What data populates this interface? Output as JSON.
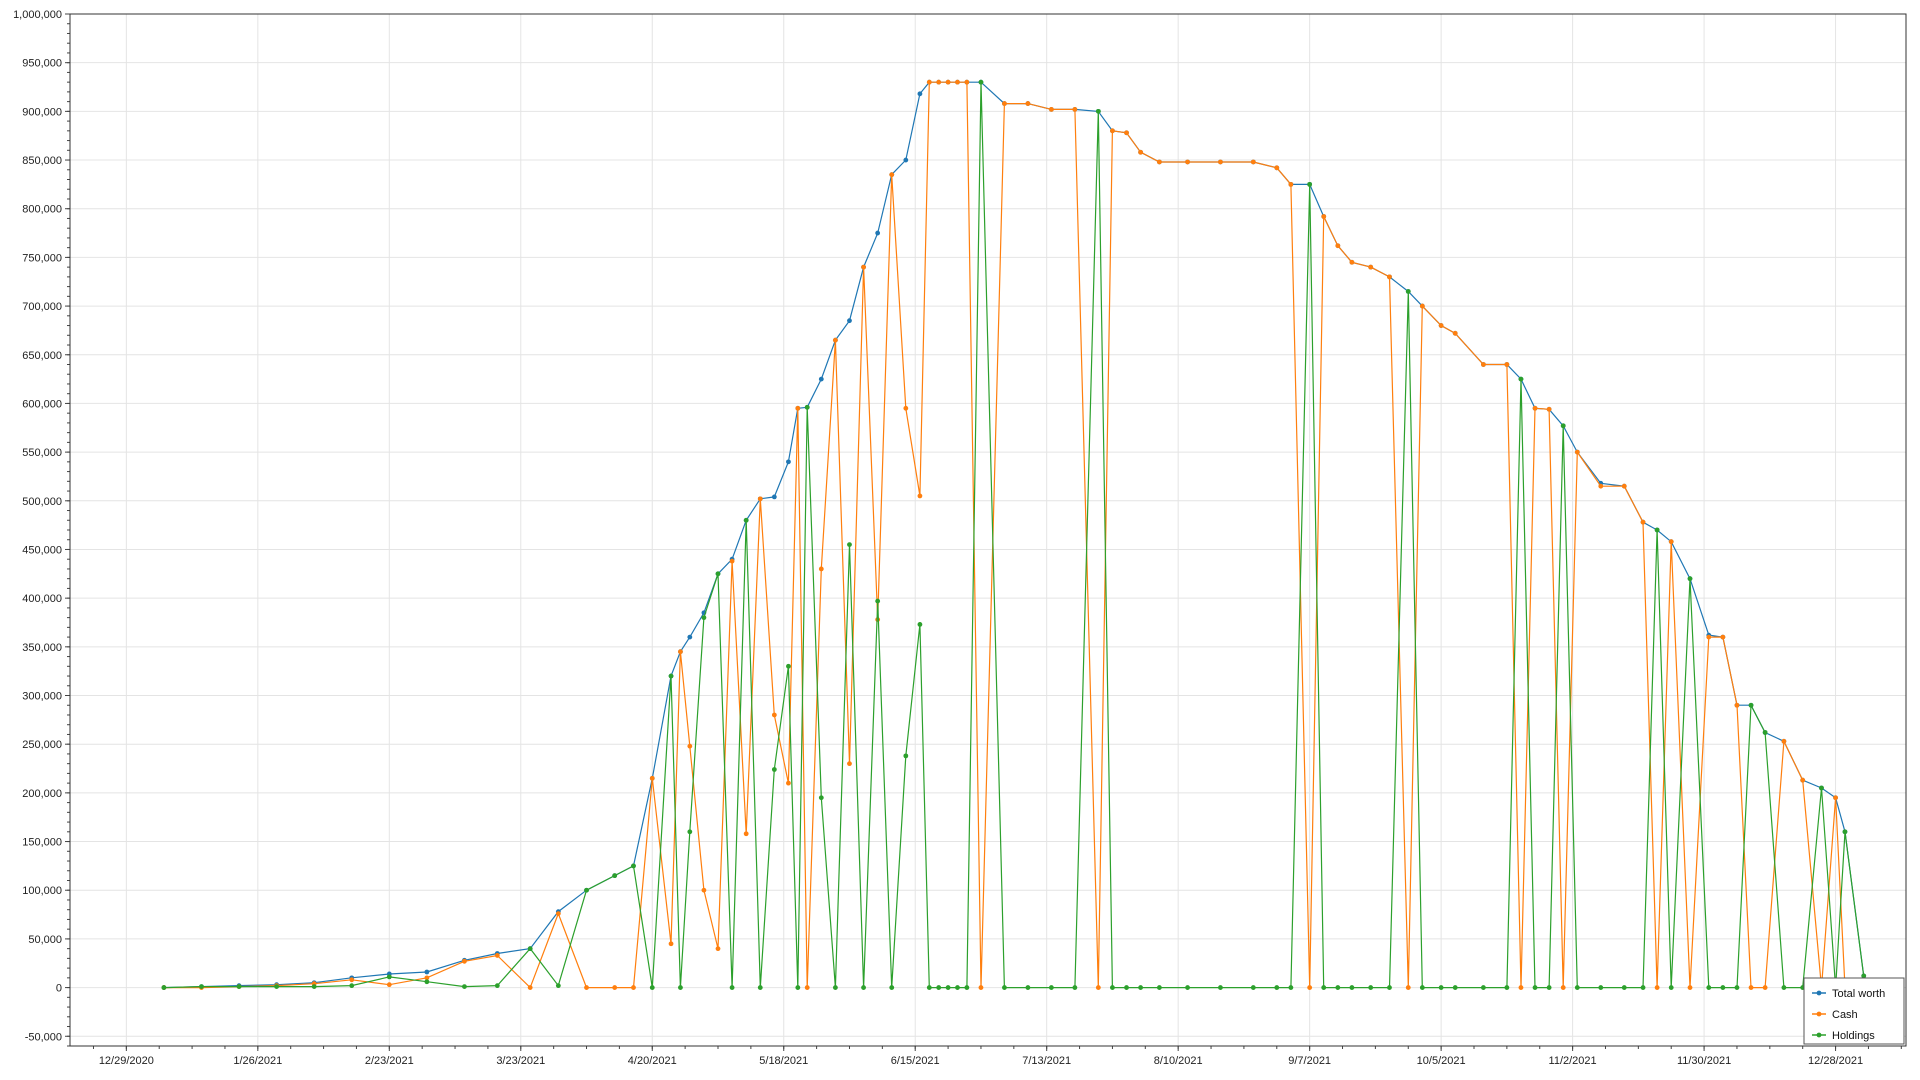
{
  "chart_data": {
    "type": "line",
    "title": "",
    "xlabel": "",
    "ylabel": "",
    "x_tick_labels": [
      "12/29/2020",
      "1/26/2021",
      "2/23/2021",
      "3/23/2021",
      "4/20/2021",
      "5/18/2021",
      "6/15/2021",
      "7/13/2021",
      "8/10/2021",
      "9/7/2021",
      "10/5/2021",
      "11/2/2021",
      "11/30/2021",
      "12/28/2021"
    ],
    "y_tick_labels": [
      "-50,000",
      "0",
      "50,000",
      "100,000",
      "150,000",
      "200,000",
      "250,000",
      "300,000",
      "350,000",
      "400,000",
      "450,000",
      "500,000",
      "550,000",
      "600,000",
      "650,000",
      "700,000",
      "750,000",
      "800,000",
      "850,000",
      "900,000",
      "950,000",
      "1,000,000"
    ],
    "xlim": [
      "2020-12-17",
      "2022-01-12"
    ],
    "ylim": [
      -60000,
      1000000
    ],
    "grid": true,
    "legend_position": "bottom-right",
    "x": [
      "2021-01-06",
      "2021-01-14",
      "2021-01-22",
      "2021-01-30",
      "2021-02-07",
      "2021-02-15",
      "2021-02-23",
      "2021-03-03",
      "2021-03-11",
      "2021-03-18",
      "2021-03-25",
      "2021-03-31",
      "2021-04-06",
      "2021-04-12",
      "2021-04-16",
      "2021-04-20",
      "2021-04-24",
      "2021-04-26",
      "2021-04-28",
      "2021-05-01",
      "2021-05-04",
      "2021-05-07",
      "2021-05-10",
      "2021-05-13",
      "2021-05-16",
      "2021-05-19",
      "2021-05-21",
      "2021-05-23",
      "2021-05-26",
      "2021-05-29",
      "2021-06-01",
      "2021-06-04",
      "2021-06-07",
      "2021-06-10",
      "2021-06-13",
      "2021-06-16",
      "2021-06-18",
      "2021-06-20",
      "2021-06-22",
      "2021-06-24",
      "2021-06-26",
      "2021-06-29",
      "2021-07-04",
      "2021-07-09",
      "2021-07-14",
      "2021-07-19",
      "2021-07-24",
      "2021-07-27",
      "2021-07-30",
      "2021-08-02",
      "2021-08-06",
      "2021-08-12",
      "2021-08-19",
      "2021-08-26",
      "2021-08-31",
      "2021-09-03",
      "2021-09-07",
      "2021-09-10",
      "2021-09-13",
      "2021-09-16",
      "2021-09-20",
      "2021-09-24",
      "2021-09-28",
      "2021-10-01",
      "2021-10-05",
      "2021-10-08",
      "2021-10-14",
      "2021-10-19",
      "2021-10-22",
      "2021-10-25",
      "2021-10-28",
      "2021-10-31",
      "2021-11-03",
      "2021-11-08",
      "2021-11-13",
      "2021-11-17",
      "2021-11-20",
      "2021-11-23",
      "2021-11-27",
      "2021-12-01",
      "2021-12-04",
      "2021-12-07",
      "2021-12-10",
      "2021-12-13",
      "2021-12-17",
      "2021-12-21",
      "2021-12-25",
      "2021-12-28",
      "2021-12-30",
      "2022-01-03"
    ],
    "series": [
      {
        "name": "Total worth",
        "color": "#1f77b4",
        "values": [
          0,
          1000,
          2000,
          3000,
          5000,
          10000,
          14000,
          16000,
          28000,
          35000,
          40000,
          78000,
          100000,
          115000,
          125000,
          215000,
          320000,
          345000,
          360000,
          385000,
          425000,
          440000,
          480000,
          502000,
          504000,
          540000,
          595000,
          596000,
          625000,
          665000,
          685000,
          740000,
          775000,
          835000,
          850000,
          918000,
          930000,
          930000,
          930000,
          930000,
          930000,
          930000,
          908000,
          908000,
          902000,
          902000,
          900000,
          880000,
          878000,
          858000,
          848000,
          848000,
          848000,
          848000,
          842000,
          825000,
          825000,
          792000,
          762000,
          745000,
          740000,
          730000,
          715000,
          700000,
          680000,
          672000,
          640000,
          640000,
          625000,
          595000,
          594000,
          577000,
          550000,
          518000,
          515000,
          478000,
          470000,
          458000,
          420000,
          362000,
          360000,
          290000,
          290000,
          262000,
          253000,
          213000,
          205000,
          195000,
          160000,
          12000
        ]
      },
      {
        "name": "Cash",
        "color": "#ff7f0e",
        "values": [
          0,
          0,
          1000,
          2000,
          4000,
          8000,
          3000,
          10000,
          27000,
          33000,
          0,
          76000,
          0,
          0,
          0,
          215000,
          45000,
          345000,
          248000,
          100000,
          40000,
          438000,
          158000,
          502000,
          280000,
          210000,
          595000,
          0,
          430000,
          665000,
          230000,
          740000,
          378000,
          835000,
          595000,
          505000,
          930000,
          930000,
          930000,
          930000,
          930000,
          0,
          908000,
          908000,
          902000,
          902000,
          0,
          880000,
          878000,
          858000,
          848000,
          848000,
          848000,
          848000,
          842000,
          825000,
          0,
          792000,
          762000,
          745000,
          740000,
          730000,
          0,
          700000,
          680000,
          672000,
          640000,
          640000,
          0,
          595000,
          594000,
          0,
          550000,
          515000,
          515000,
          478000,
          0,
          458000,
          0,
          360000,
          360000,
          290000,
          0,
          0,
          253000,
          213000,
          0,
          195000,
          0,
          0
        ]
      },
      {
        "name": "Holdings",
        "color": "#2ca02c",
        "values": [
          0,
          1000,
          1000,
          1000,
          1000,
          2000,
          11000,
          6000,
          1000,
          2000,
          40000,
          2000,
          100000,
          115000,
          125000,
          0,
          320000,
          0,
          160000,
          380000,
          425000,
          0,
          480000,
          0,
          224000,
          330000,
          0,
          596000,
          195000,
          0,
          455000,
          0,
          397000,
          0,
          238000,
          373000,
          0,
          0,
          0,
          0,
          0,
          930000,
          0,
          0,
          0,
          0,
          900000,
          0,
          0,
          0,
          0,
          0,
          0,
          0,
          0,
          0,
          825000,
          0,
          0,
          0,
          0,
          0,
          715000,
          0,
          0,
          0,
          0,
          0,
          625000,
          0,
          0,
          577000,
          0,
          0,
          0,
          0,
          470000,
          0,
          420000,
          0,
          0,
          0,
          290000,
          262000,
          0,
          0,
          205000,
          0,
          160000,
          12000
        ]
      }
    ]
  }
}
